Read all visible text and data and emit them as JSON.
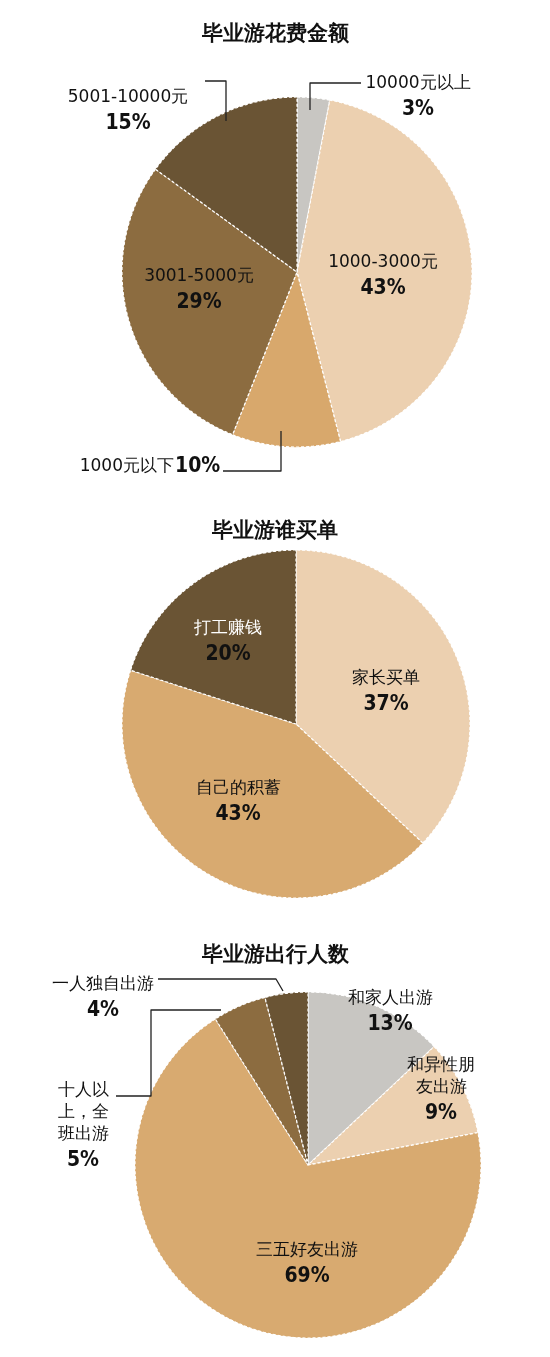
{
  "chart_data": [
    {
      "type": "pie",
      "title": "毕业游花费金额",
      "categories": [
        "10000元以上",
        "1000-3000元",
        "1000元以下",
        "3001-5000元",
        "5001-10000元"
      ],
      "values": [
        3,
        43,
        10,
        29,
        15
      ],
      "colors": [
        "#c8c6c2",
        "#ecd0b0",
        "#d8a86c",
        "#8c6c40",
        "#6a5434"
      ],
      "value_labels": [
        "3%",
        "43%",
        "10%",
        "29%",
        "15%"
      ]
    },
    {
      "type": "pie",
      "title": "毕业游谁买单",
      "categories": [
        "家长买单",
        "自己的积蓄",
        "打工赚钱"
      ],
      "values": [
        37,
        43,
        20
      ],
      "colors": [
        "#ecd0b0",
        "#d8aa70",
        "#6a5434"
      ],
      "value_labels": [
        "37%",
        "43%",
        "20%"
      ]
    },
    {
      "type": "pie",
      "title": "毕业游出行人数",
      "categories": [
        "和家人出游",
        "和异性朋友出游",
        "三五好友出游",
        "十人以上，全班出游",
        "一人独自出游"
      ],
      "values": [
        13,
        9,
        69,
        5,
        4
      ],
      "colors": [
        "#c8c6c2",
        "#ecd0b0",
        "#d8aa70",
        "#8c6c40",
        "#6a5434"
      ],
      "value_labels": [
        "13%",
        "9%",
        "69%",
        "5%",
        "4%"
      ]
    }
  ]
}
